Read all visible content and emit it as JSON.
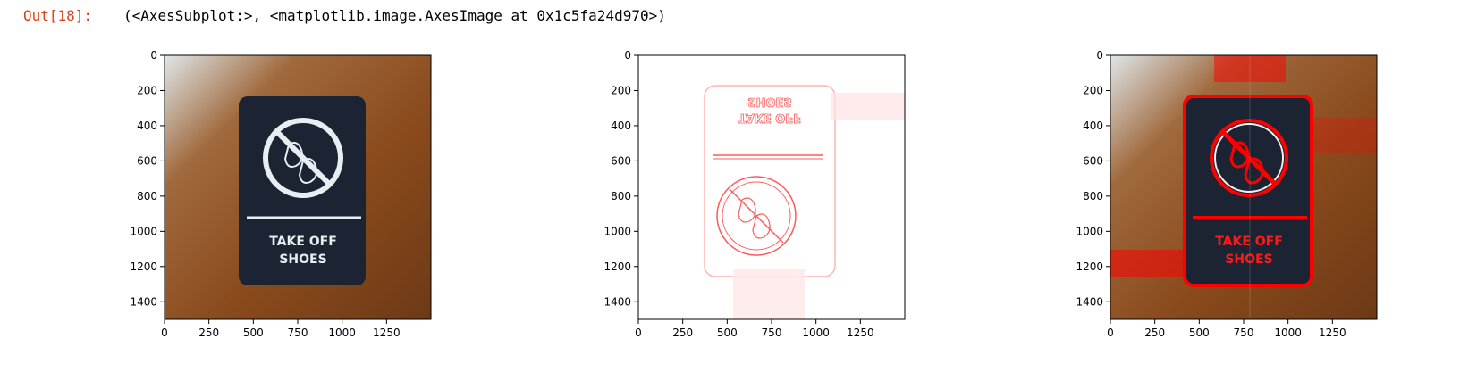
{
  "cell": {
    "prompt": "Out[18]:",
    "repr": "(<AxesSubplot:>, <matplotlib.image.AxesImage at 0x1c5fa24d970>)"
  },
  "image_panels": [
    {
      "name": "original-photo",
      "sign_text_line1": "TAKE OFF",
      "sign_text_line2": "SHOES"
    },
    {
      "name": "edge-mask",
      "sign_text_line1": "TAKE OFF",
      "sign_text_line2": "SHOES"
    },
    {
      "name": "overlay",
      "sign_text_line1": "TAKE OFF",
      "sign_text_line2": "SHOES"
    }
  ],
  "axes": {
    "y_ticks": [
      0,
      200,
      400,
      600,
      800,
      1000,
      1200,
      1400
    ],
    "x_ticks": [
      0,
      250,
      500,
      750,
      1000,
      1250
    ],
    "xlim": [
      0,
      1500
    ],
    "ylim": [
      1500,
      0
    ]
  },
  "colors": {
    "prompt": "#d84315",
    "edge": "#ff5a5a",
    "overlay": "#ff0000",
    "wood": "#8a4a1c",
    "sign": "#1c2333"
  }
}
